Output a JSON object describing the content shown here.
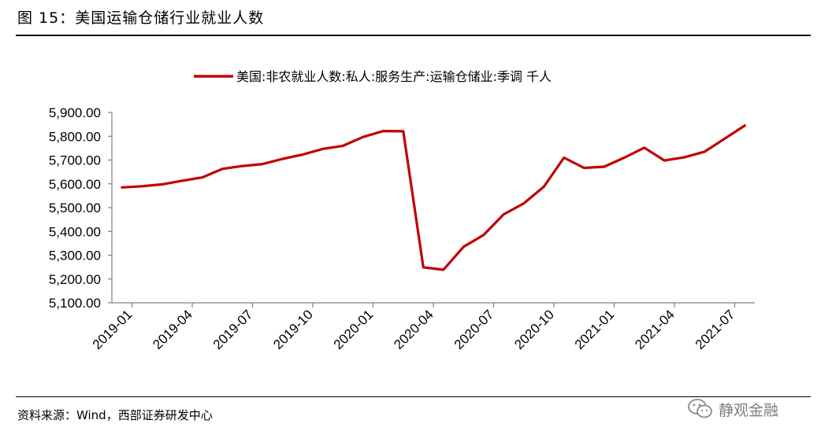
{
  "title": "图 15：美国运输仓储行业就业人数",
  "source": "资料来源：Wind，西部证券研发中心",
  "watermark": {
    "text": "静观金融",
    "icon": "wechat-icon"
  },
  "colors": {
    "series": "#C00000",
    "axis": "#808080",
    "text": "#000000"
  },
  "chart_data": {
    "type": "line",
    "legend": "top-center",
    "grid": false,
    "ylim": [
      5100,
      5900
    ],
    "yticks": [
      "5,900.00",
      "5,800.00",
      "5,700.00",
      "5,600.00",
      "5,500.00",
      "5,400.00",
      "5,300.00",
      "5,200.00",
      "5,100.00"
    ],
    "ytick_values": [
      5900,
      5800,
      5700,
      5600,
      5500,
      5400,
      5300,
      5200,
      5100
    ],
    "xtick_labels": [
      "2019-01",
      "2019-04",
      "2019-07",
      "2019-10",
      "2020-01",
      "2020-04",
      "2020-07",
      "2020-10",
      "2021-01",
      "2021-04",
      "2021-07"
    ],
    "xtick_indices": [
      0,
      3,
      6,
      9,
      12,
      15,
      18,
      21,
      24,
      27,
      30
    ],
    "x": [
      "2019-01",
      "2019-02",
      "2019-03",
      "2019-04",
      "2019-05",
      "2019-06",
      "2019-07",
      "2019-08",
      "2019-09",
      "2019-10",
      "2019-11",
      "2019-12",
      "2020-01",
      "2020-02",
      "2020-03",
      "2020-04",
      "2020-05",
      "2020-06",
      "2020-07",
      "2020-08",
      "2020-09",
      "2020-10",
      "2020-11",
      "2020-12",
      "2021-01",
      "2021-02",
      "2021-03",
      "2021-04",
      "2021-05",
      "2021-06",
      "2021-07",
      "2021-08"
    ],
    "series": [
      {
        "name": "美国:非农就业人数:私人:服务生产:运输仓储业:季调 千人",
        "color": "#C00000",
        "values": [
          5585,
          5590,
          5598,
          5613,
          5627,
          5663,
          5675,
          5683,
          5705,
          5723,
          5747,
          5760,
          5797,
          5822,
          5821,
          5249,
          5239,
          5335,
          5385,
          5472,
          5518,
          5588,
          5710,
          5667,
          5672,
          5710,
          5752,
          5698,
          5712,
          5735,
          5790,
          5845
        ]
      }
    ]
  }
}
